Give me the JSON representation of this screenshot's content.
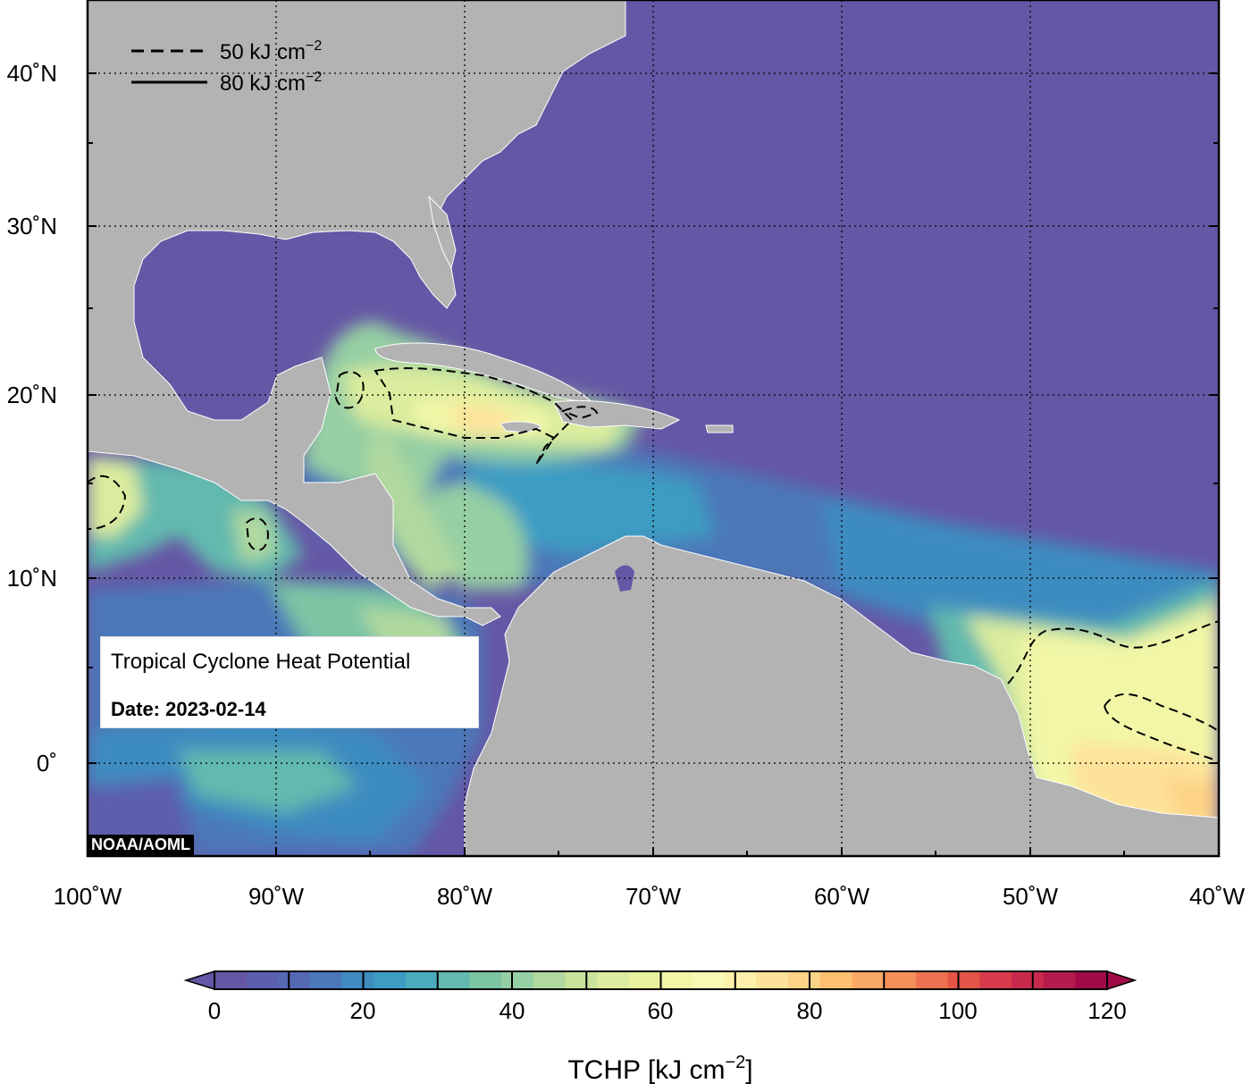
{
  "figure": {
    "title": "Tropical Cyclone Heat Potential",
    "date_text": "Date: 2023-02-14",
    "credit": "NOAA/AOML"
  },
  "legend": {
    "items": [
      {
        "style": "dashed",
        "label_main": "50 kJ cm",
        "label_sup": "−2"
      },
      {
        "style": "solid",
        "label_main": "80 kJ cm",
        "label_sup": "−2"
      }
    ]
  },
  "axes": {
    "lon_labels": [
      "100˚W",
      "90˚W",
      "80˚W",
      "70˚W",
      "60˚W",
      "50˚W",
      "40˚W"
    ],
    "lat_labels": [
      "40˚N",
      "30˚N",
      "20˚N",
      "10˚N",
      "0˚"
    ],
    "lon_range": [
      -100,
      -40
    ],
    "lat_range": [
      -5,
      44
    ],
    "grid": "dotted"
  },
  "colorbar": {
    "title_main": "TCHP [kJ cm",
    "title_sup": "−2",
    "title_end": "]",
    "tick_labels": [
      "0",
      "20",
      "40",
      "60",
      "80",
      "100",
      "120"
    ],
    "range": [
      0,
      120
    ],
    "extend": "both",
    "colors": [
      "#6557a5",
      "#5c5fad",
      "#5468b4",
      "#4b78b8",
      "#3e8cc0",
      "#3c9cc3",
      "#4aabbd",
      "#62b9ad",
      "#7bc4a4",
      "#95cfa3",
      "#b0d99f",
      "#c8e49b",
      "#dbec9e",
      "#e9f39f",
      "#f2f7a7",
      "#f9f8b5",
      "#fdf0aa",
      "#fde29a",
      "#fdd385",
      "#fcc070",
      "#faa965",
      "#f6905a",
      "#ee7150",
      "#e45547",
      "#d73b4b",
      "#c82a4d",
      "#b51b4c",
      "#a10a48"
    ]
  },
  "colors": {
    "ocean_low": "#6557a5",
    "land": "#b3b3b3"
  }
}
